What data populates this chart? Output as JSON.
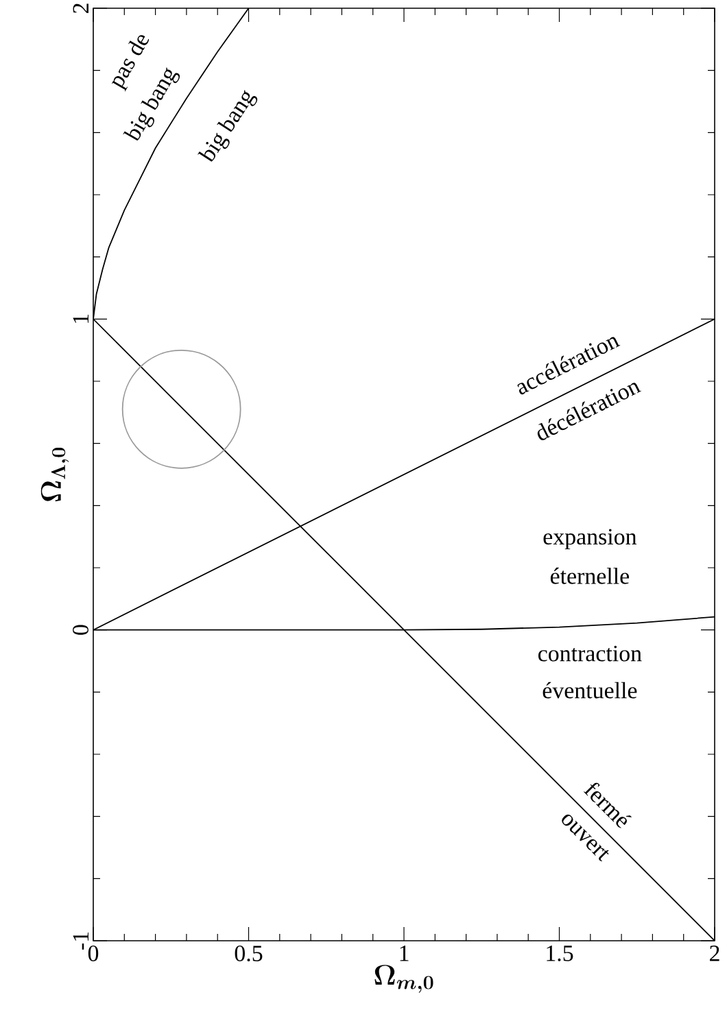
{
  "chart_data": {
    "type": "line",
    "xlabel": "\\Omega_{m,0}",
    "ylabel": "\\Omega_{\\Lambda,0}",
    "xlim": [
      0,
      2
    ],
    "ylim": [
      -1,
      2
    ],
    "xticks": [
      0,
      {
        "value": 0.1,
        "label": null
      },
      {
        "value": 0.2,
        "label": null
      },
      {
        "value": 0.3,
        "label": null
      },
      {
        "value": 0.4,
        "label": null
      },
      0.5,
      {
        "value": 0.6,
        "label": null
      },
      {
        "value": 0.7,
        "label": null
      },
      {
        "value": 0.8,
        "label": null
      },
      {
        "value": 0.9,
        "label": null
      },
      1,
      {
        "value": 1.1,
        "label": null
      },
      {
        "value": 1.2,
        "label": null
      },
      {
        "value": 1.3,
        "label": null
      },
      {
        "value": 1.4,
        "label": null
      },
      1.5,
      {
        "value": 1.6,
        "label": null
      },
      {
        "value": 1.7,
        "label": null
      },
      {
        "value": 1.8,
        "label": null
      },
      {
        "value": 1.9,
        "label": null
      },
      2
    ],
    "yticks": [
      -1,
      {
        "value": -0.8,
        "label": null
      },
      {
        "value": -0.6,
        "label": null
      },
      {
        "value": -0.4,
        "label": null
      },
      {
        "value": -0.2,
        "label": null
      },
      0,
      {
        "value": 0.2,
        "label": null
      },
      {
        "value": 0.4,
        "label": null
      },
      {
        "value": 0.6,
        "label": null
      },
      {
        "value": 0.8,
        "label": null
      },
      1,
      {
        "value": 1.2,
        "label": null
      },
      {
        "value": 1.4,
        "label": null
      },
      {
        "value": 1.6,
        "label": null
      },
      {
        "value": 1.8,
        "label": null
      },
      2
    ],
    "series": [
      {
        "color": "#000000",
        "x": [
          0,
          2
        ],
        "values": [
          1,
          -1
        ]
      },
      {
        "color": "#000000",
        "x": [
          0,
          2
        ],
        "values": [
          0,
          1
        ]
      },
      {
        "color": "#000000",
        "x": [
          0,
          1,
          1.25,
          1.5,
          1.75,
          2
        ],
        "values": [
          0,
          0,
          0.002,
          0.009,
          0.022,
          0.042
        ]
      },
      {
        "color": "#000000",
        "x": [
          0,
          0.01,
          0.03,
          0.05,
          0.1,
          0.2,
          0.3,
          0.4,
          0.5
        ],
        "values": [
          1,
          1.08,
          1.16,
          1.23,
          1.35,
          1.55,
          1.71,
          1.86,
          2
        ]
      }
    ],
    "annotations": [
      "pas de",
      "big bang",
      "big bang",
      "accélération",
      "décélération",
      "expansion",
      "éternelle",
      "contraction",
      "éventuelle",
      "fermé",
      "ouvert"
    ]
  }
}
